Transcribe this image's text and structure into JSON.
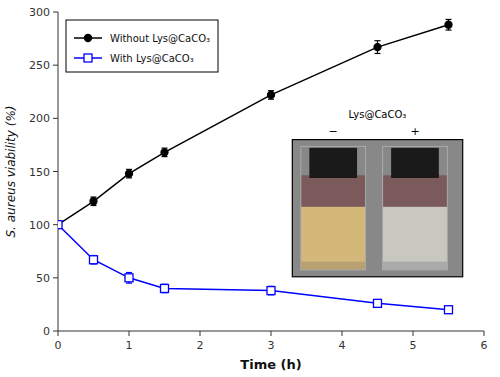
{
  "chart_data": {
    "type": "line",
    "xlabel": "Time (h)",
    "ylabel": "S. aureus viability (%)",
    "x": [
      0,
      0.5,
      1,
      1.5,
      3,
      4.5,
      5.5
    ],
    "series": [
      {
        "name": "Without Lys@CaCO₃",
        "color": "#000000",
        "marker": "circle",
        "values": [
          100,
          122,
          148,
          168,
          222,
          267,
          288
        ],
        "errors": [
          2,
          4,
          4,
          4,
          4,
          6,
          5
        ]
      },
      {
        "name": "With Lys@CaCO₃",
        "color": "#0000FF",
        "marker": "open-square",
        "values": [
          100,
          67,
          50,
          40,
          38,
          26,
          20
        ],
        "errors": [
          2,
          4,
          5,
          4,
          4,
          3,
          3
        ]
      }
    ],
    "xlim": [
      0,
      6
    ],
    "ylim": [
      0,
      300
    ],
    "xticks": [
      0,
      1,
      2,
      3,
      4,
      5,
      6
    ],
    "yticks": [
      0,
      50,
      100,
      150,
      200,
      250,
      300
    ],
    "grid": false,
    "legend": "upper left",
    "annotations": [
      {
        "text": "Lys@CaCO₃"
      },
      {
        "text": "−"
      },
      {
        "text": "+"
      }
    ]
  }
}
